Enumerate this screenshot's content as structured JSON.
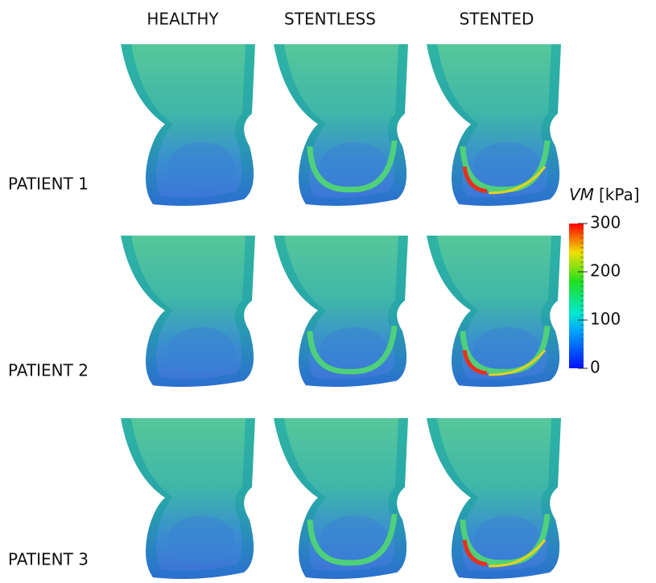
{
  "columns": [
    "HEALTHY",
    "STENTLESS",
    "STENTED"
  ],
  "rows": [
    "PATIENT 1",
    "PATIENT 2",
    "PATIENT 3"
  ],
  "colorbar": {
    "variable": "VM",
    "unit": "[kPa]",
    "range": [
      0,
      300
    ],
    "ticks": [
      0,
      100,
      200,
      300
    ]
  }
}
